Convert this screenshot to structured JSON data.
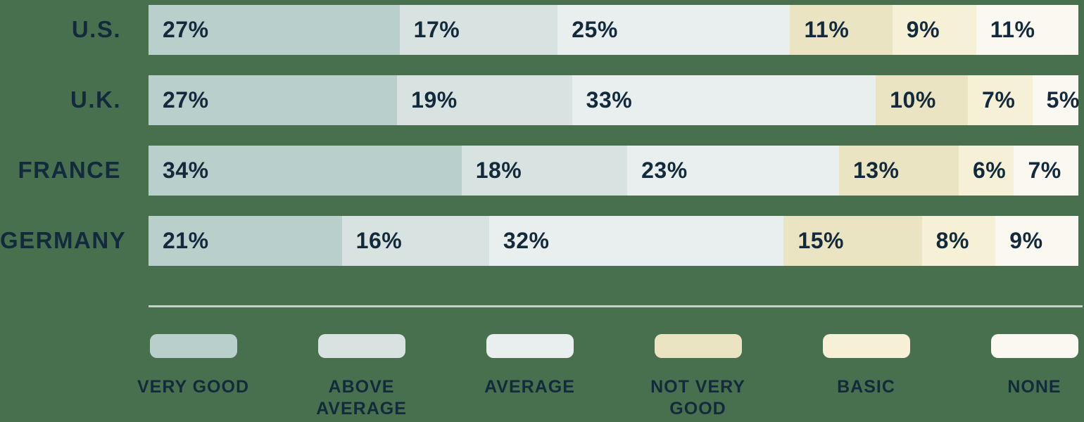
{
  "chart_data": {
    "type": "bar",
    "variant": "horizontal-stacked",
    "categories": [
      "U.S.",
      "U.K.",
      "FRANCE",
      "GERMANY"
    ],
    "series": [
      {
        "name": "VERY GOOD",
        "color": "#b9cfcc",
        "values": [
          27,
          27,
          34,
          21
        ]
      },
      {
        "name": "ABOVE AVERAGE",
        "color": "#d8e3e1",
        "values": [
          17,
          19,
          18,
          16
        ]
      },
      {
        "name": "AVERAGE",
        "color": "#e8efee",
        "values": [
          25,
          33,
          23,
          32
        ]
      },
      {
        "name": "NOT VERY GOOD",
        "color": "#ebe4c2",
        "values": [
          11,
          10,
          13,
          15
        ]
      },
      {
        "name": "BASIC",
        "color": "#f6f0d7",
        "values": [
          9,
          7,
          6,
          8
        ]
      },
      {
        "name": "NONE",
        "color": "#faf8f0",
        "values": [
          11,
          5,
          7,
          9
        ]
      }
    ],
    "value_suffix": "%",
    "value_labels_shown": true,
    "axis_shown": false,
    "grid": false,
    "legend_position": "bottom"
  },
  "colors": {
    "background": "#48704f",
    "text": "#132a3c",
    "divider": "#c6d0ca"
  }
}
